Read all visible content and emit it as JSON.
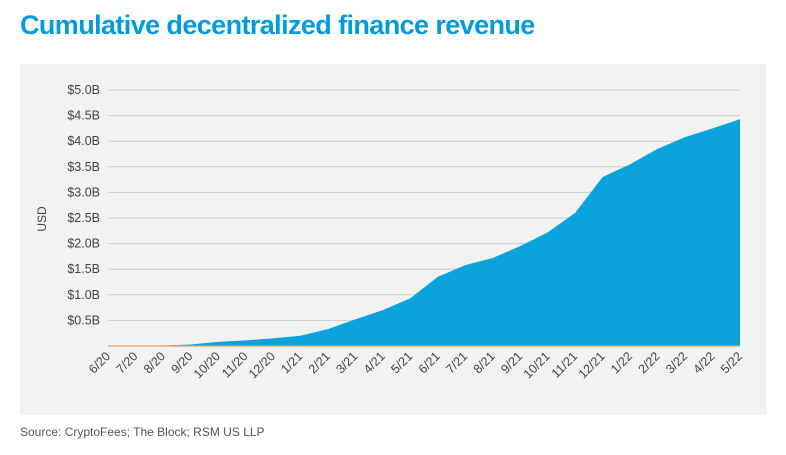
{
  "title": "Cumulative decentralized finance revenue",
  "source": "Source: CryptoFees; The Block; RSM US LLP",
  "colors": {
    "title": "#009cde",
    "area": "#0aa3dc",
    "baseline": "#e8a070",
    "grid": "#cccccc",
    "panel": "#f2f2f2",
    "text": "#444444"
  },
  "chart_data": {
    "type": "area",
    "title": "Cumulative decentralized finance revenue",
    "xlabel": "",
    "ylabel": "USD",
    "ylim": [
      0,
      5.0
    ],
    "grid": true,
    "y_ticks": [
      {
        "value": 0.5,
        "label": "$0.5B"
      },
      {
        "value": 1.0,
        "label": "$1.0B"
      },
      {
        "value": 1.5,
        "label": "$1.5B"
      },
      {
        "value": 2.0,
        "label": "$2.0B"
      },
      {
        "value": 2.5,
        "label": "$2.5B"
      },
      {
        "value": 3.0,
        "label": "$3.0B"
      },
      {
        "value": 3.5,
        "label": "$3.5B"
      },
      {
        "value": 4.0,
        "label": "$4.0B"
      },
      {
        "value": 4.5,
        "label": "$4.5B"
      },
      {
        "value": 5.0,
        "label": "$5.0B"
      }
    ],
    "x_ticks": [
      "6/20",
      "7/20",
      "8/20",
      "9/20",
      "10/20",
      "11/20",
      "12/20",
      "1/21",
      "2/21",
      "3/21",
      "4/21",
      "5/21",
      "6/21",
      "7/21",
      "8/21",
      "9/21",
      "10/21",
      "11/21",
      "12/21",
      "1/22",
      "2/22",
      "3/22",
      "4/22",
      "5/22"
    ],
    "series": [
      {
        "x": [
          "6/20",
          "7/20",
          "8/20",
          "9/20",
          "10/20",
          "11/20",
          "12/20",
          "1/21",
          "2/21",
          "3/21",
          "4/21",
          "5/21",
          "6/21",
          "7/21",
          "8/21",
          "9/21",
          "10/21",
          "11/21",
          "12/21",
          "1/22",
          "2/22",
          "3/22",
          "4/22",
          "5/22"
        ],
        "values": [
          0.0,
          0.0,
          0.01,
          0.03,
          0.08,
          0.11,
          0.15,
          0.2,
          0.33,
          0.52,
          0.7,
          0.93,
          1.35,
          1.58,
          1.72,
          1.95,
          2.22,
          2.6,
          3.3,
          3.55,
          3.85,
          4.08,
          4.25,
          4.43
        ]
      }
    ]
  }
}
